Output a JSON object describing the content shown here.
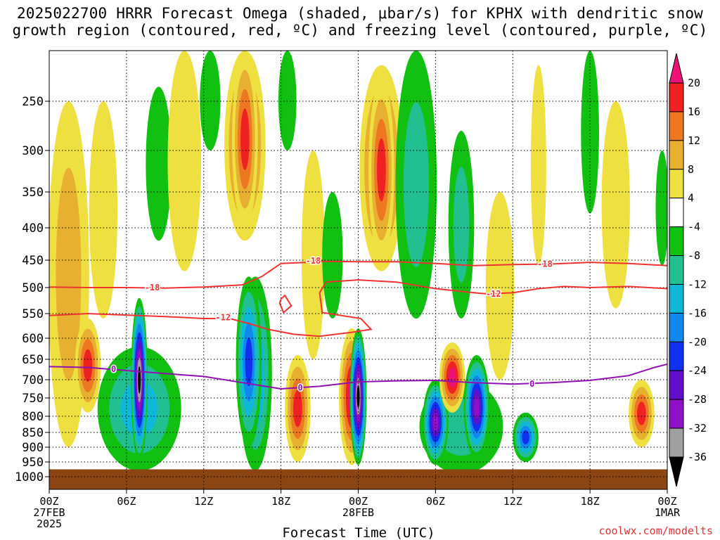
{
  "title_line1": "2025022700 HRRR Forecast Omega (shaded, μbar/s) for KPHX with dendritic snow",
  "title_line2": "growth region (contoured, red, ºC) and freezing level (contoured, purple, ºC)",
  "credit": "coolwx.com/modelts",
  "chart_data": {
    "type": "heatmap",
    "title": "2025022700 HRRR Forecast Omega (shaded, μbar/s) for KPHX with dendritic snow growth region (contoured, red, ºC) and freezing level (contoured, purple, ºC)",
    "xlabel": "Forecast Time (UTC)",
    "ylabel": "",
    "y_scale": "pressure (inverted, log-like)",
    "x_range_hours": [
      0,
      48
    ],
    "y_ticks": [
      250,
      300,
      350,
      400,
      450,
      500,
      550,
      600,
      650,
      700,
      750,
      800,
      850,
      900,
      950,
      1000
    ],
    "x_ticks": [
      {
        "h": 0,
        "label": "00Z",
        "sub": "27FEB",
        "sub2": "2025"
      },
      {
        "h": 6,
        "label": "06Z",
        "sub": "",
        "sub2": ""
      },
      {
        "h": 12,
        "label": "12Z",
        "sub": "",
        "sub2": ""
      },
      {
        "h": 18,
        "label": "18Z",
        "sub": "",
        "sub2": ""
      },
      {
        "h": 24,
        "label": "00Z",
        "sub": "28FEB",
        "sub2": ""
      },
      {
        "h": 30,
        "label": "06Z",
        "sub": "",
        "sub2": ""
      },
      {
        "h": 36,
        "label": "12Z",
        "sub": "",
        "sub2": ""
      },
      {
        "h": 42,
        "label": "18Z",
        "sub": "",
        "sub2": ""
      },
      {
        "h": 48,
        "label": "00Z",
        "sub": "1MAR",
        "sub2": ""
      }
    ],
    "grid": true,
    "colorbar": {
      "levels": [
        20,
        16,
        12,
        8,
        4,
        -4,
        -8,
        -12,
        -16,
        -20,
        -24,
        -28,
        -32,
        -36
      ],
      "colors": [
        "#ee1177",
        "#ee2222",
        "#ee7722",
        "#e8b030",
        "#eee040",
        "#ffffff",
        "#11c011",
        "#22c090",
        "#10b8d8",
        "#1088ee",
        "#1030ee",
        "#6010c8",
        "#9010c8",
        "#a0a0a0",
        "#000000"
      ]
    },
    "ground_level_hpa": 975,
    "ground_color": "#8b4513",
    "contours": [
      {
        "name": "-18 (dendritic growth, upper)",
        "color": "#ee3333",
        "label": "-18",
        "points": [
          [
            0,
            499
          ],
          [
            3,
            500
          ],
          [
            6,
            500
          ],
          [
            9,
            501
          ],
          [
            12,
            499
          ],
          [
            15,
            495
          ],
          [
            16.5,
            480
          ],
          [
            18,
            456
          ],
          [
            20,
            454
          ],
          [
            21,
            452
          ],
          [
            24,
            453
          ],
          [
            27,
            453
          ],
          [
            30,
            456
          ],
          [
            33,
            460
          ],
          [
            36,
            458
          ],
          [
            39,
            457
          ],
          [
            42,
            454
          ],
          [
            45,
            456
          ],
          [
            48,
            460
          ]
        ],
        "label_positions": [
          [
            8,
            500
          ],
          [
            20.5,
            451
          ],
          [
            38.5,
            457
          ]
        ]
      },
      {
        "name": "-12 (dendritic growth, lower)",
        "color": "#ee3333",
        "label": "-12",
        "points": [
          [
            0,
            554
          ],
          [
            3,
            550
          ],
          [
            6,
            553
          ],
          [
            9,
            556
          ],
          [
            12,
            560
          ],
          [
            14,
            560
          ],
          [
            15.5,
            570
          ],
          [
            17,
            582
          ],
          [
            19,
            592
          ],
          [
            21,
            596
          ],
          [
            23.5,
            588
          ],
          [
            25,
            582
          ],
          [
            24.2,
            560
          ],
          [
            21.2,
            548
          ],
          [
            21,
            510
          ],
          [
            21.5,
            490
          ],
          [
            24,
            486
          ],
          [
            27,
            490
          ],
          [
            30,
            502
          ],
          [
            33,
            510
          ],
          [
            34,
            512
          ],
          [
            36,
            510
          ],
          [
            38,
            502
          ],
          [
            40,
            498
          ],
          [
            42,
            500
          ],
          [
            45,
            498
          ],
          [
            48,
            502
          ]
        ],
        "label_positions": [
          [
            13.5,
            558
          ],
          [
            34.5,
            512
          ]
        ]
      },
      {
        "name": "-18 small loop near 18Z",
        "color": "#ee3333",
        "label": "",
        "points": [
          [
            18,
            522
          ],
          [
            18.3,
            515
          ],
          [
            18.8,
            535
          ],
          [
            18.2,
            548
          ],
          [
            17.9,
            530
          ],
          [
            18,
            522
          ]
        ]
      },
      {
        "name": "0 (freezing level)",
        "color": "#9010b0",
        "label": "0",
        "points": [
          [
            0,
            668
          ],
          [
            3,
            670
          ],
          [
            5,
            675
          ],
          [
            7,
            680
          ],
          [
            9,
            685
          ],
          [
            12,
            692
          ],
          [
            15,
            708
          ],
          [
            18,
            725
          ],
          [
            21,
            718
          ],
          [
            24,
            706
          ],
          [
            27,
            703
          ],
          [
            30,
            702
          ],
          [
            33,
            708
          ],
          [
            36,
            712
          ],
          [
            39,
            708
          ],
          [
            42,
            702
          ],
          [
            45,
            690
          ],
          [
            47,
            670
          ],
          [
            48,
            662
          ]
        ],
        "label_positions": [
          [
            5,
            674
          ],
          [
            19.5,
            722
          ],
          [
            37.5,
            712
          ]
        ]
      }
    ],
    "omega_features": [
      {
        "h": 3.0,
        "p_top": 560,
        "p_bot": 790,
        "peak": 14,
        "kind": "positive"
      },
      {
        "h": 7.0,
        "p_top": 520,
        "p_bot": 950,
        "peak": -36,
        "kind": "negative"
      },
      {
        "h": 15.2,
        "p_top": 180,
        "p_bot": 400,
        "peak": 16,
        "kind": "positive"
      },
      {
        "h": 15.5,
        "p_top": 480,
        "p_bot": 900,
        "peak": -20,
        "kind": "negative"
      },
      {
        "h": 19.3,
        "p_top": 640,
        "p_bot": 950,
        "peak": 14,
        "kind": "positive"
      },
      {
        "h": 23.5,
        "p_top": 580,
        "p_bot": 960,
        "peak": 18,
        "kind": "positive"
      },
      {
        "h": 24.0,
        "p_top": 580,
        "p_bot": 960,
        "peak": -40,
        "kind": "negative"
      },
      {
        "h": 25.8,
        "p_top": 220,
        "p_bot": 450,
        "peak": 16,
        "kind": "positive"
      },
      {
        "h": 30.0,
        "p_top": 700,
        "p_bot": 960,
        "peak": -28,
        "kind": "negative"
      },
      {
        "h": 31.3,
        "p_top": 610,
        "p_bot": 790,
        "peak": 20,
        "kind": "positive"
      },
      {
        "h": 33.2,
        "p_top": 640,
        "p_bot": 940,
        "peak": -28,
        "kind": "negative"
      },
      {
        "h": 37.0,
        "p_top": 790,
        "p_bot": 950,
        "peak": -20,
        "kind": "negative"
      },
      {
        "h": 46.0,
        "p_top": 700,
        "p_bot": 900,
        "peak": 14,
        "kind": "positive"
      }
    ]
  }
}
